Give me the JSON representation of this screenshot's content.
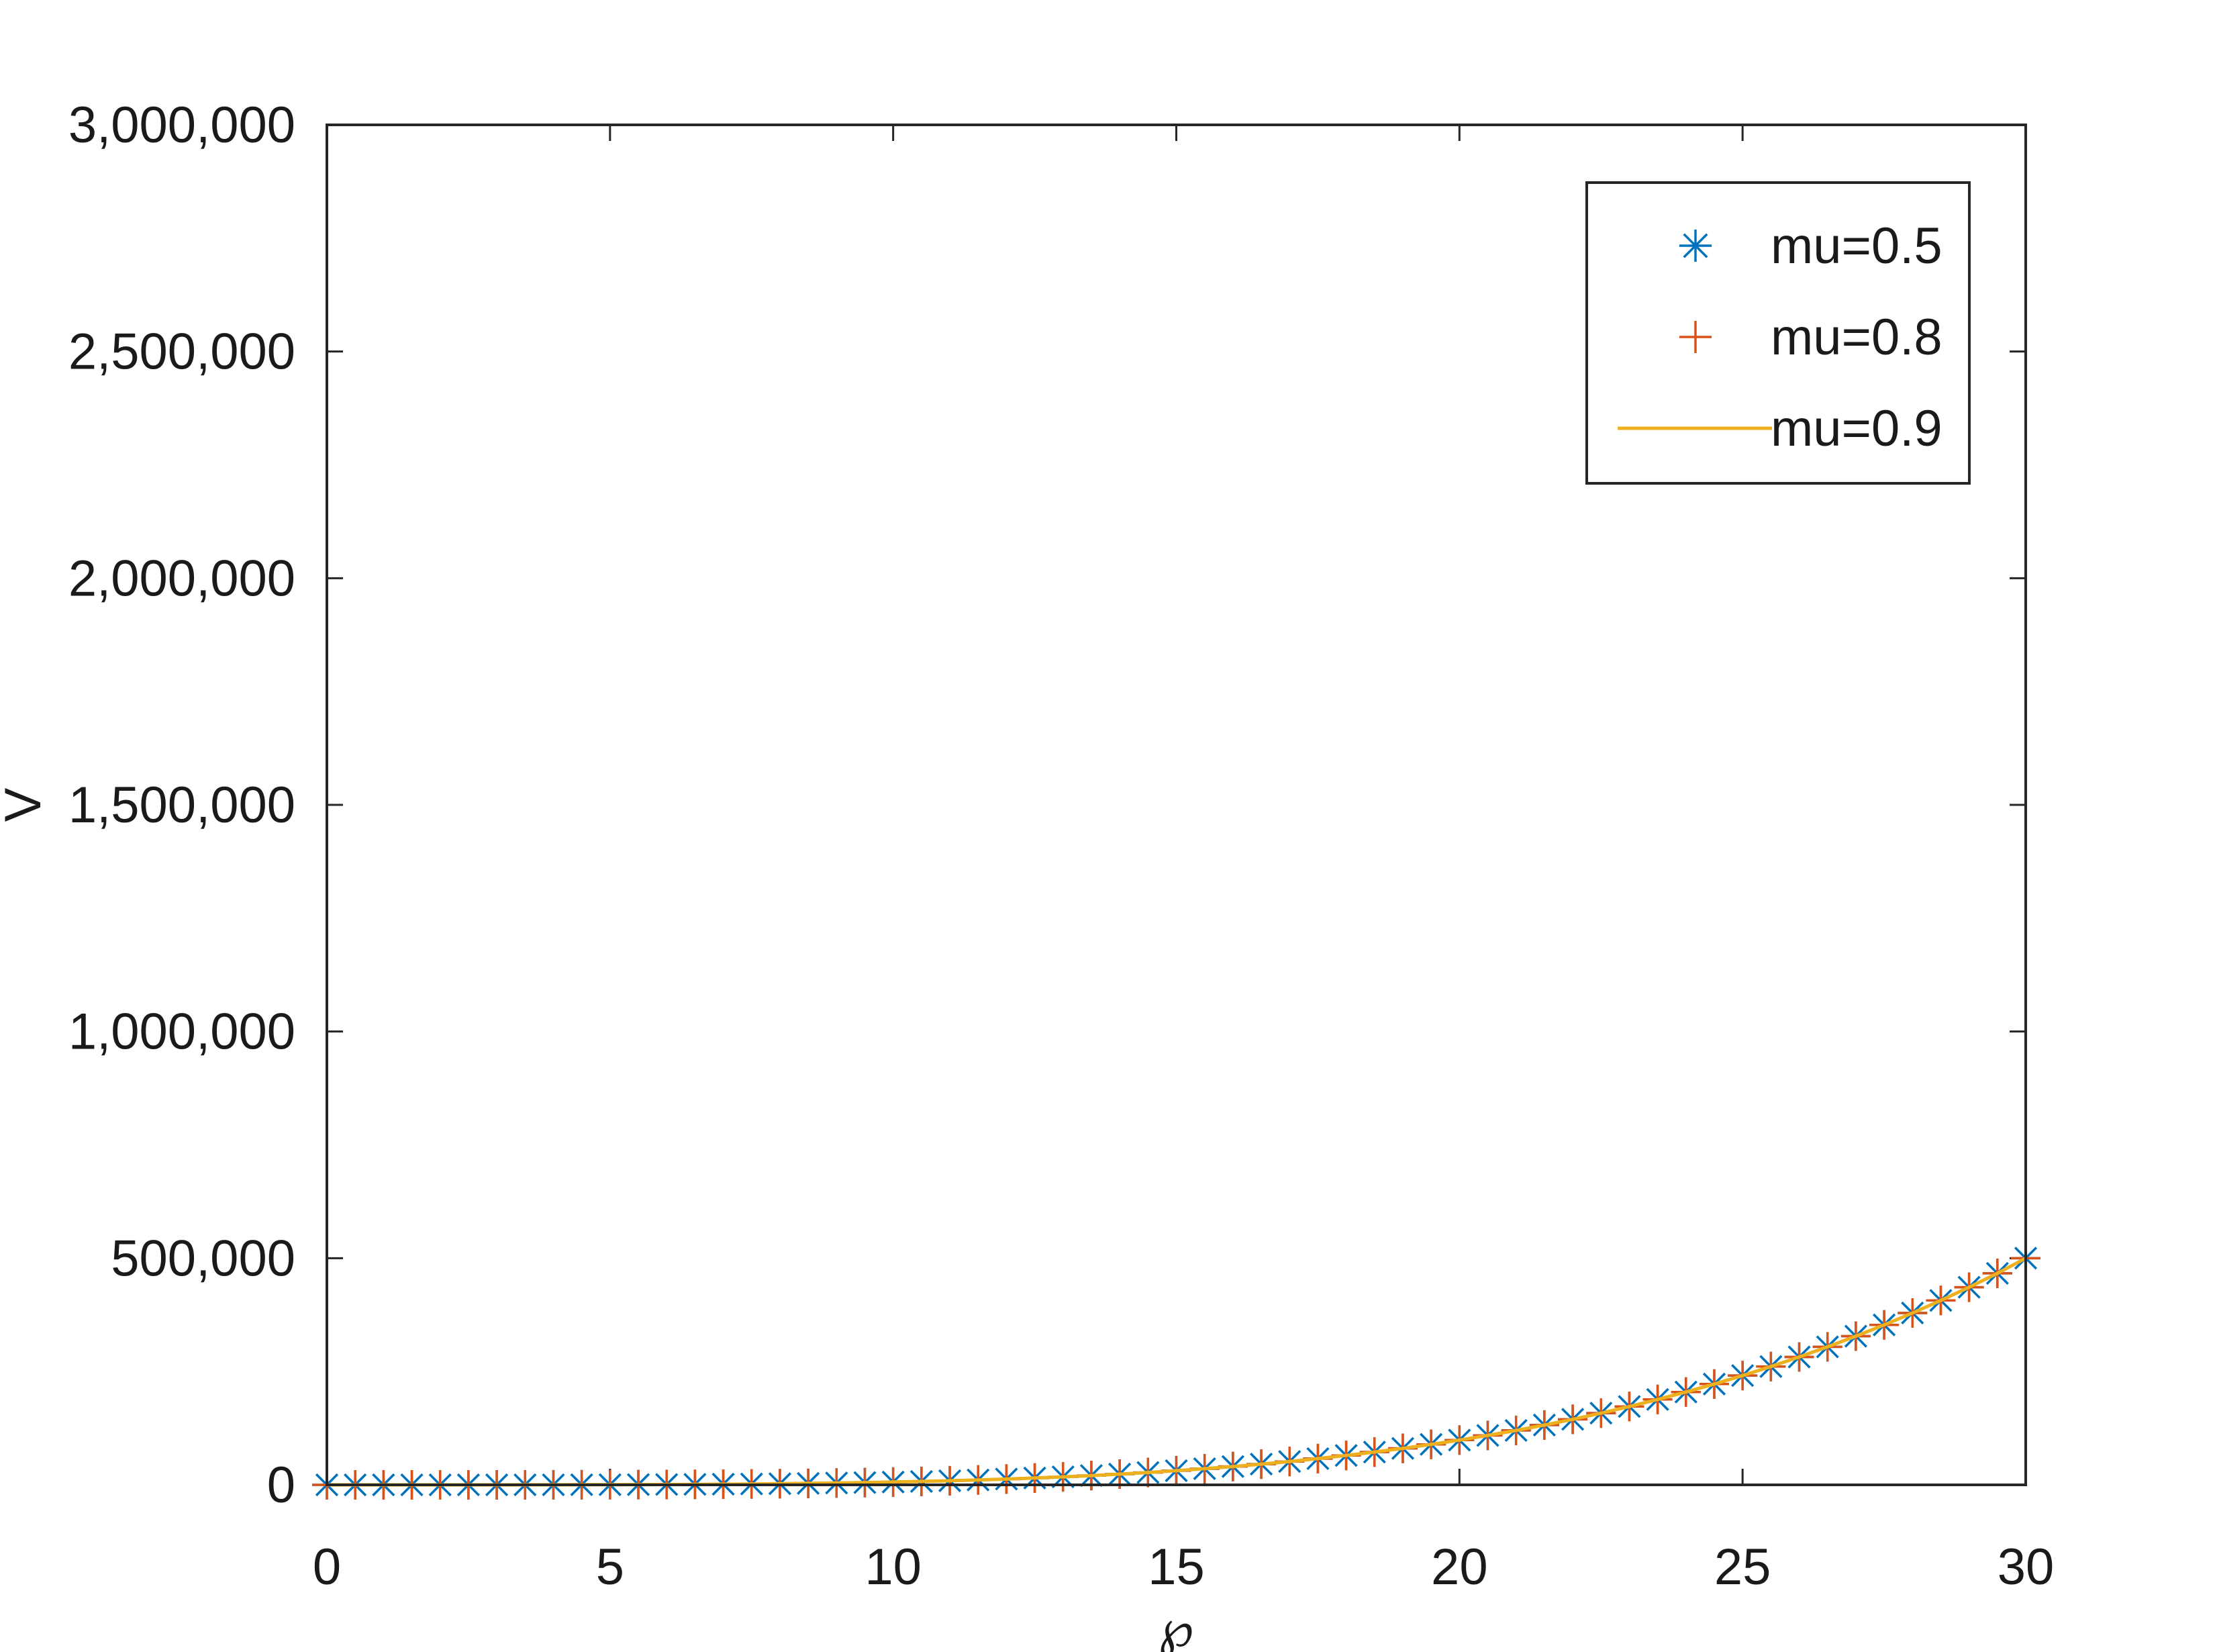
{
  "chart_data": {
    "type": "scatter",
    "title": "",
    "xlabel": "℘",
    "ylabel": "V",
    "xlim": [
      0,
      30
    ],
    "ylim": [
      0,
      3000000
    ],
    "x_ticks": [
      0,
      5,
      10,
      15,
      20,
      25,
      30
    ],
    "x_tick_labels": [
      "0",
      "5",
      "10",
      "15",
      "20",
      "25",
      "30"
    ],
    "y_ticks": [
      0,
      500000,
      1000000,
      1500000,
      2000000,
      2500000,
      3000000
    ],
    "y_tick_labels": [
      "0",
      "500,000",
      "1,000,000",
      "1,500,000",
      "2,000,000",
      "2,500,000",
      "3,000,000"
    ],
    "grid": false,
    "legend_position": "top-right",
    "x": [
      0,
      0.5,
      1,
      1.5,
      2,
      2.5,
      3,
      3.5,
      4,
      4.5,
      5,
      5.5,
      6,
      6.5,
      7,
      7.5,
      8,
      8.5,
      9,
      9.5,
      10,
      10.5,
      11,
      11.5,
      12,
      12.5,
      13,
      13.5,
      14,
      14.5,
      15,
      15.5,
      16,
      16.5,
      17,
      17.5,
      18,
      18.5,
      19,
      19.5,
      20,
      20.5,
      21,
      21.5,
      22,
      22.5,
      23,
      23.5,
      24,
      24.5,
      25,
      25.5,
      26,
      26.5,
      27,
      27.5,
      28,
      28.5,
      29,
      29.5,
      30
    ],
    "series": [
      {
        "name": "mu=0.5",
        "marker": "asterisk",
        "color": "#0072bd",
        "values": [
          0,
          0,
          1,
          3,
          10,
          24,
          50,
          93,
          158,
          253,
          386,
          565,
          800,
          1102,
          1482,
          1953,
          2528,
          3222,
          4050,
          5028,
          6173,
          7503,
          9037,
          10795,
          12800,
          15071,
          17631,
          20505,
          23714,
          27285,
          31250,
          35625,
          40453,
          45746,
          51541,
          57872,
          64800,
          72339,
          80441,
          89300,
          98765,
          108970,
          120050,
          131960,
          144590,
          158200,
          172790,
          188380,
          204800,
          222400,
          241120,
          261000,
          282090,
          304400,
          327980,
          352880,
          379140,
          406810,
          435940,
          466570,
          500000
        ]
      },
      {
        "name": "mu=0.8",
        "marker": "plus",
        "color": "#d95319",
        "values": [
          0,
          0,
          1,
          3,
          10,
          24,
          50,
          93,
          158,
          253,
          386,
          565,
          800,
          1102,
          1482,
          1953,
          2528,
          3222,
          4050,
          5028,
          6173,
          7503,
          9037,
          10795,
          12800,
          15071,
          17631,
          20505,
          23714,
          27285,
          31250,
          35625,
          40453,
          45746,
          51541,
          57872,
          64800,
          72339,
          80441,
          89300,
          98765,
          108970,
          120050,
          131960,
          144590,
          158200,
          172790,
          188380,
          204800,
          222400,
          241120,
          261000,
          282090,
          304400,
          327980,
          352880,
          379140,
          406810,
          435940,
          466570,
          500000
        ]
      },
      {
        "name": "mu=0.9",
        "marker": "line",
        "color": "#edb120",
        "values": [
          0,
          0,
          1,
          3,
          10,
          24,
          50,
          93,
          158,
          253,
          386,
          565,
          800,
          1102,
          1482,
          1953,
          2528,
          3222,
          4050,
          5028,
          6173,
          7503,
          9037,
          10795,
          12800,
          15071,
          17631,
          20505,
          23714,
          27285,
          31250,
          35625,
          40453,
          45746,
          51541,
          57872,
          64800,
          72339,
          80441,
          89300,
          98765,
          108970,
          120050,
          131960,
          144590,
          158200,
          172790,
          188380,
          204800,
          222400,
          241120,
          261000,
          282090,
          304400,
          327980,
          352880,
          379140,
          406810,
          435940,
          466570,
          500000
        ]
      }
    ]
  }
}
